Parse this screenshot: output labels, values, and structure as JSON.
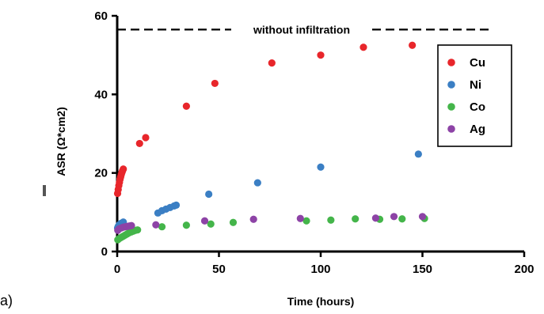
{
  "panel_label": "a)",
  "chart_data": {
    "type": "scatter",
    "xlabel": "Time (hours)",
    "ylabel": "ASR (Ω*cm2)",
    "xlim": [
      0,
      200
    ],
    "ylim": [
      0,
      60
    ],
    "xticks": [
      0,
      50,
      100,
      150,
      200
    ],
    "yticks": [
      0,
      20,
      40,
      60
    ],
    "grid": false,
    "legend_position": "top-right",
    "reference_line": {
      "y": 56.5,
      "x_start": 0,
      "x_end": 183,
      "label": "without infiltration",
      "style": "dashed"
    },
    "series": [
      {
        "name": "Cu",
        "color": "#e8262b",
        "points": [
          [
            0.2,
            14.8
          ],
          [
            0.5,
            15.8
          ],
          [
            0.8,
            16.8
          ],
          [
            1.1,
            17.6
          ],
          [
            1.4,
            18.4
          ],
          [
            1.7,
            19.0
          ],
          [
            2.0,
            19.6
          ],
          [
            2.3,
            20.1
          ],
          [
            2.6,
            20.5
          ],
          [
            3,
            21.0
          ],
          [
            11,
            27.5
          ],
          [
            14,
            29.0
          ],
          [
            34,
            37.0
          ],
          [
            48,
            42.8
          ],
          [
            76,
            48.0
          ],
          [
            100,
            50.0
          ],
          [
            121,
            52.0
          ],
          [
            145,
            52.5
          ]
        ]
      },
      {
        "name": "Ni",
        "color": "#3b7fc4",
        "points": [
          [
            0.2,
            6.0
          ],
          [
            0.5,
            6.4
          ],
          [
            1,
            6.8
          ],
          [
            1.5,
            7.0
          ],
          [
            2,
            7.2
          ],
          [
            3,
            7.5
          ],
          [
            20,
            9.8
          ],
          [
            22,
            10.4
          ],
          [
            24,
            10.8
          ],
          [
            26,
            11.2
          ],
          [
            28,
            11.6
          ],
          [
            29,
            11.8
          ],
          [
            45,
            14.6
          ],
          [
            69,
            17.5
          ],
          [
            100,
            21.5
          ],
          [
            148,
            24.8
          ]
        ]
      },
      {
        "name": "Co",
        "color": "#44b54a",
        "points": [
          [
            0.3,
            3.0
          ],
          [
            1,
            3.3
          ],
          [
            2,
            3.6
          ],
          [
            3,
            3.9
          ],
          [
            4,
            4.2
          ],
          [
            5,
            4.5
          ],
          [
            6,
            4.8
          ],
          [
            7,
            5.0
          ],
          [
            8,
            5.2
          ],
          [
            9,
            5.4
          ],
          [
            10,
            5.5
          ],
          [
            22,
            6.3
          ],
          [
            34,
            6.7
          ],
          [
            46,
            7.0
          ],
          [
            57,
            7.4
          ],
          [
            93,
            7.8
          ],
          [
            105,
            8.0
          ],
          [
            117,
            8.3
          ],
          [
            129,
            8.2
          ],
          [
            140,
            8.3
          ],
          [
            151,
            8.4
          ]
        ]
      },
      {
        "name": "Ag",
        "color": "#8d43a6",
        "points": [
          [
            0.3,
            5.4
          ],
          [
            1,
            5.8
          ],
          [
            2,
            6.0
          ],
          [
            3,
            6.2
          ],
          [
            4,
            6.3
          ],
          [
            5,
            6.4
          ],
          [
            6,
            6.5
          ],
          [
            7,
            6.6
          ],
          [
            19,
            6.8
          ],
          [
            43,
            7.8
          ],
          [
            67,
            8.2
          ],
          [
            90,
            8.4
          ],
          [
            127,
            8.5
          ],
          [
            136,
            8.9
          ],
          [
            150,
            8.9
          ]
        ]
      }
    ]
  }
}
